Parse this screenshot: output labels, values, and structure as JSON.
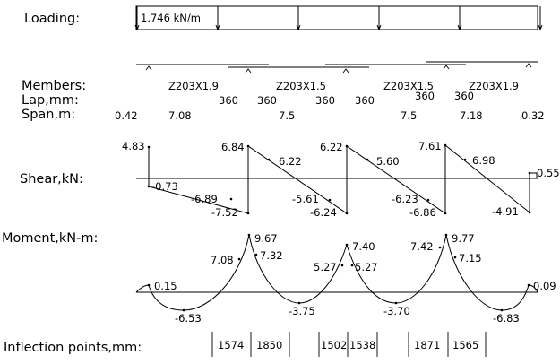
{
  "labels": {
    "loading": "Loading:",
    "members": "Members:",
    "lap": "Lap,mm:",
    "span": "Span,m:",
    "shear": "Shear,kN:",
    "moment": "Moment,kN-m:",
    "inflection": "Inflection points,mm:"
  },
  "load": {
    "value_text": "1.746  kN/m",
    "arrow_count": 6
  },
  "members": [
    "Z203X1.9",
    "Z203X1.5",
    "Z203X1.5",
    "Z203X1.9"
  ],
  "laps": [
    "360",
    "360",
    "360",
    "360",
    "360",
    "360"
  ],
  "spans": [
    "0.42",
    "7.08",
    "7.5",
    "7.5",
    "7.18",
    "0.32"
  ],
  "shear": {
    "values": [
      "4.83",
      "-0.73",
      "-6.89",
      "-7.52",
      "6.84",
      "6.22",
      "-5.61",
      "-6.24",
      "6.22",
      "5.60",
      "-6.23",
      "-6.86",
      "7.61",
      "6.98",
      "-4.91",
      "0.55"
    ]
  },
  "moment": {
    "values": [
      "0.15",
      "-6.53",
      "7.08",
      "9.67",
      "7.32",
      "-3.75",
      "7.40",
      "5.27",
      "5.27",
      "-3.70",
      "7.42",
      "9.77",
      "7.15",
      "-6.83",
      "0.09"
    ]
  },
  "inflection_points": [
    "1574",
    "1850",
    "1502",
    "1538",
    "1871",
    "1565"
  ]
}
